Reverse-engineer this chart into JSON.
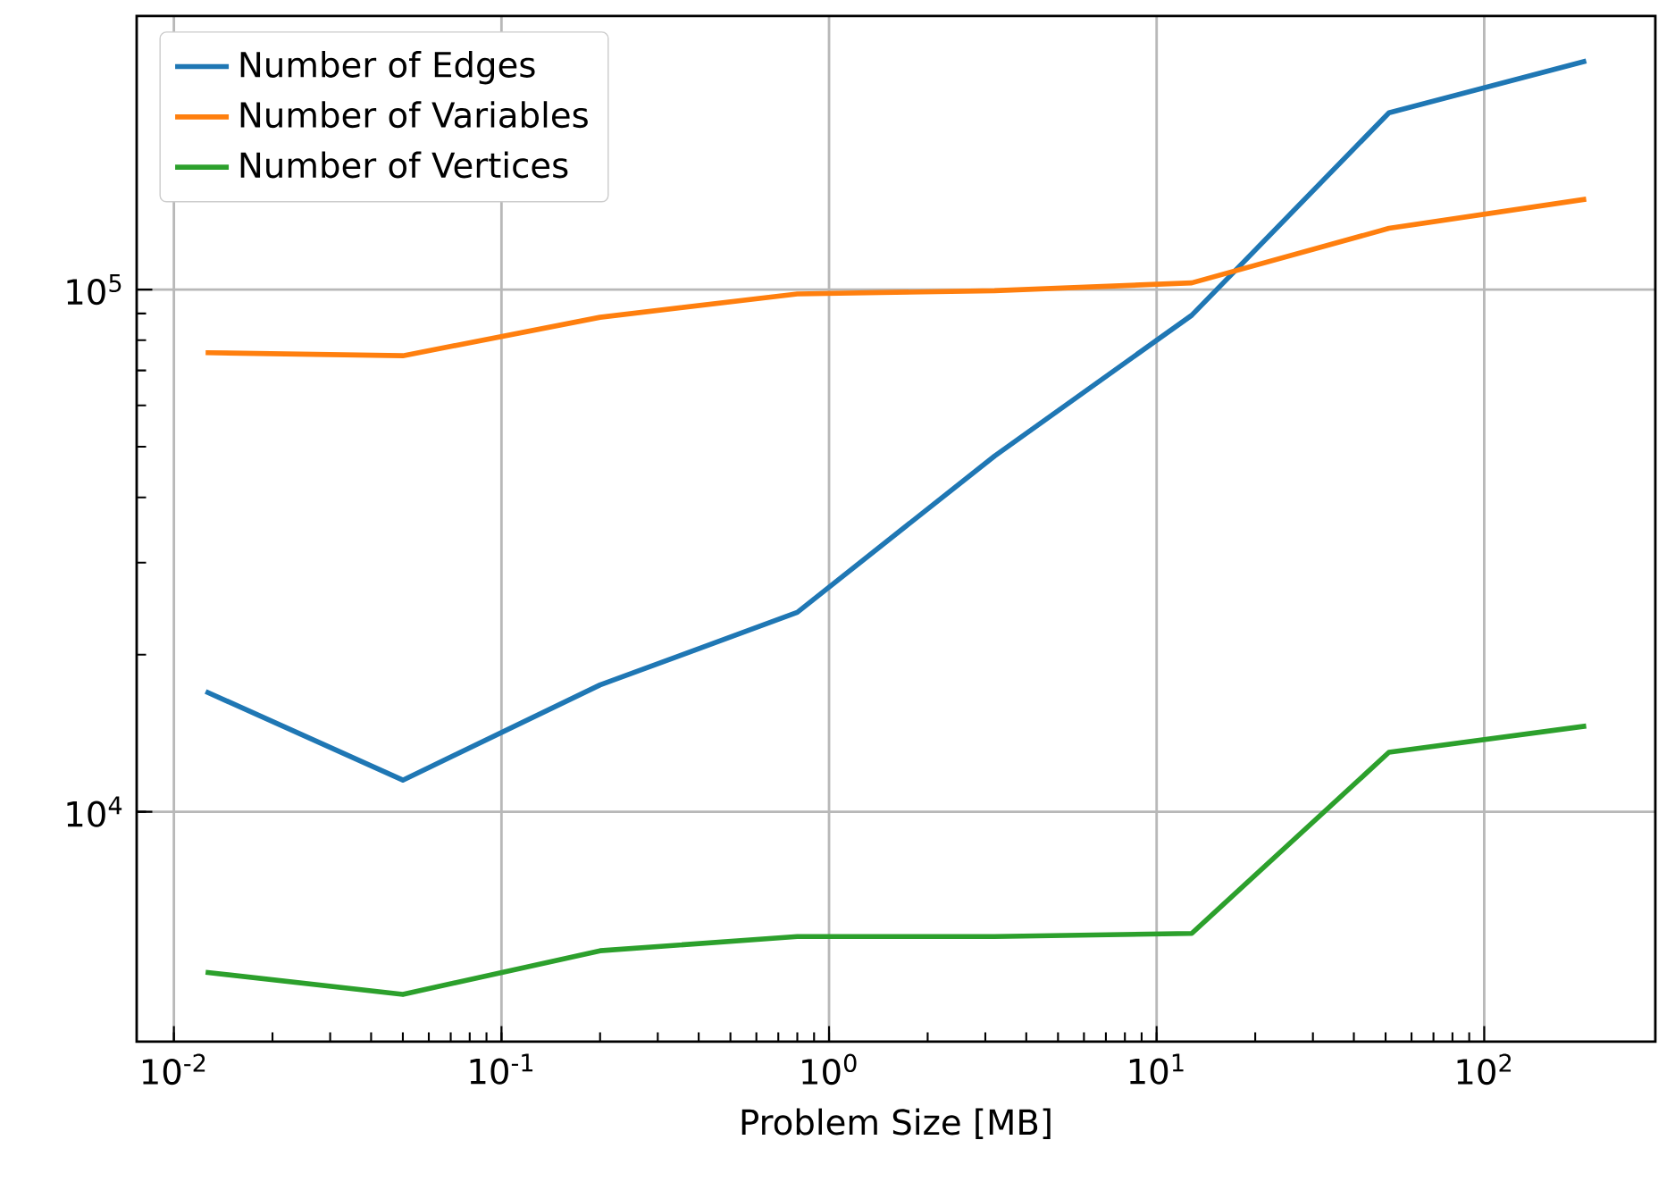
{
  "chart_data": {
    "type": "line",
    "xlabel": "Problem Size [MB]",
    "x": [
      0.0125,
      0.05,
      0.2,
      0.8,
      3.2,
      12.8,
      51.2,
      204.8
    ],
    "series": [
      {
        "name": "Number of Edges",
        "color": "#1f77b4",
        "values": [
          17000,
          11500,
          17500,
          24100,
          48000,
          89300,
          218000,
          274000
        ]
      },
      {
        "name": "Number of Variables",
        "color": "#ff7f0e",
        "values": [
          75700,
          74700,
          88500,
          98100,
          99500,
          103000,
          131000,
          149000
        ]
      },
      {
        "name": "Number of Vertices",
        "color": "#2ca02c",
        "values": [
          4930,
          4470,
          5420,
          5770,
          5770,
          5850,
          13000,
          14600
        ]
      }
    ],
    "log": "xy",
    "xlim": [
      0.0077,
      333
    ],
    "ylim": [
      3630,
      334000
    ],
    "xticks": [
      {
        "value": 0.01,
        "label": "10$^{-2}$"
      },
      {
        "value": 0.1,
        "label": "10$^{-1}$"
      },
      {
        "value": 1,
        "label": "10$^{0}$"
      },
      {
        "value": 10,
        "label": "10$^{1}$"
      },
      {
        "value": 100,
        "label": "10$^{2}$"
      }
    ],
    "yticks": [
      {
        "value": 10000,
        "label": "10$^{4}$"
      },
      {
        "value": 100000,
        "label": "10$^{5}$"
      }
    ],
    "grid": true,
    "legend": "top left",
    "marker": "none",
    "line_style": "solid"
  }
}
